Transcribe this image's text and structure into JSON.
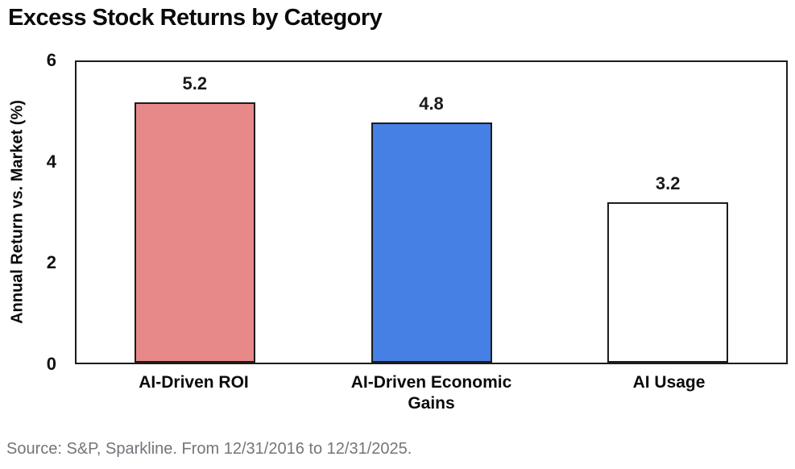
{
  "title": "Excess Stock Returns by Category",
  "source": "Source: S&P, Sparkline. From 12/31/2016 to 12/31/2025.",
  "chart_data": {
    "type": "bar",
    "title": "Excess Stock Returns by Category",
    "categories": [
      "AI-Driven ROI",
      "AI-Driven Economic Gains",
      "AI Usage"
    ],
    "values": [
      5.2,
      4.8,
      3.2
    ],
    "value_labels": [
      "5.2",
      "4.8",
      "3.2"
    ],
    "bar_colors": [
      "#e78889",
      "#4680e4",
      "#ffffff"
    ],
    "bar_border_color": "#1c1c1c",
    "xlabel": "",
    "ylabel": "Annual Return vs. Market (%)",
    "ylim": [
      0,
      6
    ],
    "yticks": [
      0,
      2,
      4,
      6
    ],
    "grid": false,
    "legend_position": "none",
    "source_note": "Source: S&P, Sparkline. From 12/31/2016 to 12/31/2025."
  }
}
